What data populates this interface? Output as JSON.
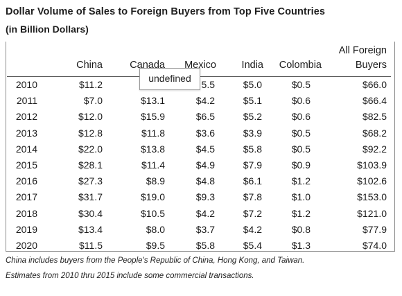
{
  "title": "Dollar Volume of Sales to Foreign Buyers from Top Five Countries",
  "subtitle": "(in Billion Dollars)",
  "tooltip": "undefined",
  "notes": [
    "China includes buyers from the People's Republic of China, Hong Kong, and Taiwan.",
    "Estimates from 2010 thru 2015 include some commercial transactions."
  ],
  "chart_data": {
    "type": "table",
    "title": "Dollar Volume of Sales to Foreign Buyers from Top Five Countries",
    "subtitle": "(in Billion Dollars)",
    "columns": [
      "",
      "China",
      "Canada",
      "Mexico",
      "India",
      "Colombia",
      "All Foreign\nBuyers"
    ],
    "header": {
      "china": "China",
      "canada": "Canada",
      "mexico": "Mexico",
      "india": "India",
      "colombia": "Colombia",
      "all_line1": "All Foreign",
      "all_line2": "Buyers"
    },
    "rows": [
      [
        "2010",
        "$11.2",
        "",
        "5.5",
        "$5.0",
        "$0.5",
        "$66.0"
      ],
      [
        "2011",
        "$7.0",
        "$13.1",
        "$4.2",
        "$5.1",
        "$0.6",
        "$66.4"
      ],
      [
        "2012",
        "$12.0",
        "$15.9",
        "$6.5",
        "$5.2",
        "$0.6",
        "$82.5"
      ],
      [
        "2013",
        "$12.8",
        "$11.8",
        "$3.6",
        "$3.9",
        "$0.5",
        "$68.2"
      ],
      [
        "2014",
        "$22.0",
        "$13.8",
        "$4.5",
        "$5.8",
        "$0.5",
        "$92.2"
      ],
      [
        "2015",
        "$28.1",
        "$11.4",
        "$4.9",
        "$7.9",
        "$0.9",
        "$103.9"
      ],
      [
        "2016",
        "$27.3",
        "$8.9",
        "$4.8",
        "$6.1",
        "$1.2",
        "$102.6"
      ],
      [
        "2017",
        "$31.7",
        "$19.0",
        "$9.3",
        "$7.8",
        "$1.0",
        "$153.0"
      ],
      [
        "2018",
        "$30.4",
        "$10.5",
        "$4.2",
        "$7.2",
        "$1.2",
        "$121.0"
      ],
      [
        "2019",
        "$13.4",
        "$8.0",
        "$3.7",
        "$4.2",
        "$0.8",
        "$77.9"
      ],
      [
        "2020",
        "$11.5",
        "$9.5",
        "$5.8",
        "$5.4",
        "$1.3",
        "$74.0"
      ]
    ]
  }
}
